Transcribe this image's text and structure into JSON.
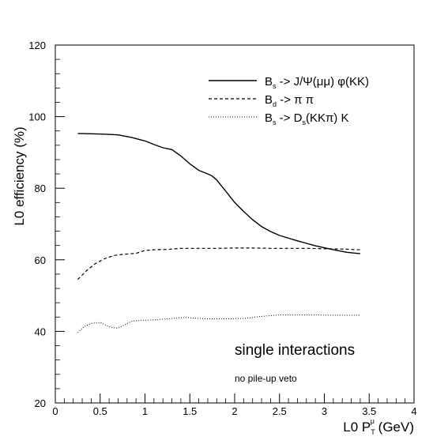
{
  "chart_data": {
    "type": "line",
    "xlabel": {
      "main": "L0 P",
      "sub": "T",
      "sup": "μ",
      "tail": " (GeV)"
    },
    "ylabel": "L0 efficiency (%)",
    "xlim": [
      0,
      4
    ],
    "ylim": [
      20,
      120
    ],
    "x_ticks": [
      0,
      0.5,
      1,
      1.5,
      2,
      2.5,
      3,
      3.5,
      4
    ],
    "x_tick_labels": [
      "0",
      "0.5",
      "1",
      "1.5",
      "2",
      "2.5",
      "3",
      "3.5",
      "4"
    ],
    "y_ticks": [
      20,
      40,
      60,
      80,
      100,
      120
    ],
    "y_tick_labels": [
      "20",
      "40",
      "60",
      "80",
      "100",
      "120"
    ],
    "grid": false,
    "legend_position": "top-right",
    "series": [
      {
        "legend": {
          "p1": "B",
          "s1": "s",
          "p2": " -> J/Ψ(μμ) φ(KK)",
          "s2": "",
          "p3": ""
        },
        "style": "solid",
        "x": [
          0.25,
          0.4,
          0.55,
          0.7,
          0.85,
          1.0,
          1.1,
          1.2,
          1.3,
          1.4,
          1.5,
          1.6,
          1.7,
          1.75,
          1.8,
          1.9,
          2.0,
          2.1,
          2.2,
          2.3,
          2.4,
          2.5,
          2.7,
          2.9,
          3.1,
          3.25,
          3.4
        ],
        "y": [
          95.3,
          95.2,
          95.1,
          94.9,
          94.2,
          93.2,
          92.2,
          91.3,
          90.8,
          89.0,
          86.8,
          85.0,
          84.0,
          83.4,
          82.3,
          79.2,
          76.0,
          73.5,
          71.2,
          69.3,
          67.9,
          66.8,
          65.3,
          63.9,
          62.8,
          62.1,
          61.7
        ]
      },
      {
        "legend": {
          "p1": "B",
          "s1": "d",
          "p2": " -> π π",
          "s2": "",
          "p3": ""
        },
        "style": "dashed",
        "x": [
          0.25,
          0.35,
          0.45,
          0.55,
          0.65,
          0.75,
          0.9,
          1.0,
          1.1,
          1.25,
          1.4,
          1.6,
          1.8,
          2.0,
          2.2,
          2.4,
          2.6,
          2.8,
          3.0,
          3.2,
          3.4
        ],
        "y": [
          54.5,
          57.0,
          59.0,
          60.3,
          61.2,
          61.5,
          61.8,
          62.6,
          62.8,
          62.9,
          63.2,
          63.2,
          63.2,
          63.3,
          63.3,
          63.2,
          63.2,
          63.2,
          63.1,
          63.0,
          62.8
        ]
      },
      {
        "legend": {
          "p1": "B",
          "s1": "s",
          "p2": " -> D",
          "s2": "s",
          "p3": "(KKπ) K"
        },
        "style": "dotted",
        "x": [
          0.25,
          0.32,
          0.4,
          0.5,
          0.6,
          0.68,
          0.75,
          0.85,
          0.95,
          1.1,
          1.3,
          1.45,
          1.55,
          1.7,
          1.9,
          2.1,
          2.3,
          2.5,
          2.7,
          2.9,
          3.1,
          3.4
        ],
        "y": [
          39.7,
          41.3,
          42.2,
          42.5,
          41.3,
          40.9,
          41.5,
          42.8,
          43.1,
          43.2,
          43.6,
          43.9,
          43.7,
          43.5,
          43.5,
          43.6,
          44.2,
          44.6,
          44.6,
          44.6,
          44.5,
          44.5
        ]
      }
    ],
    "annotations": [
      "single interactions",
      "no pile-up veto"
    ]
  }
}
